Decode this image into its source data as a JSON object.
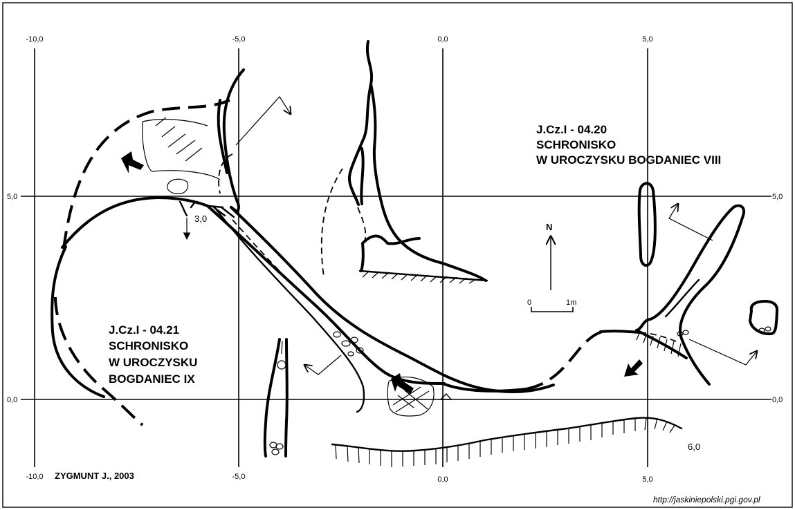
{
  "map": {
    "grid_labels": {
      "top": [
        "-10,0",
        "-5,0",
        "0,0",
        "5,0"
      ],
      "bottom": [
        "-10,0",
        "-5,0",
        "0,0",
        "5,0"
      ],
      "left": [
        "5,0",
        "0,0"
      ],
      "right": [
        "5,0",
        "0,0"
      ]
    },
    "cave_viii": {
      "line1": "J.Cz.I - 04.20",
      "line2": "SCHRONISKO",
      "line3": "W UROCZYSKU BOGDANIEC VIII"
    },
    "cave_ix": {
      "line1": "J.Cz.I - 04.21",
      "line2": "SCHRONISKO",
      "line3": "W UROCZYSKU",
      "line4": "BOGDANIEC IX"
    },
    "author": "ZYGMUNT J., 2003",
    "north_label": "N",
    "scale": {
      "left": "0",
      "right": "1m"
    },
    "depth_labels": {
      "upper": "3,0",
      "lower": "6,0"
    },
    "source_url": "http://jaskiniepolski.pgi.gov.pl",
    "colors": {
      "ink": "#000000",
      "paper": "#ffffff"
    }
  }
}
